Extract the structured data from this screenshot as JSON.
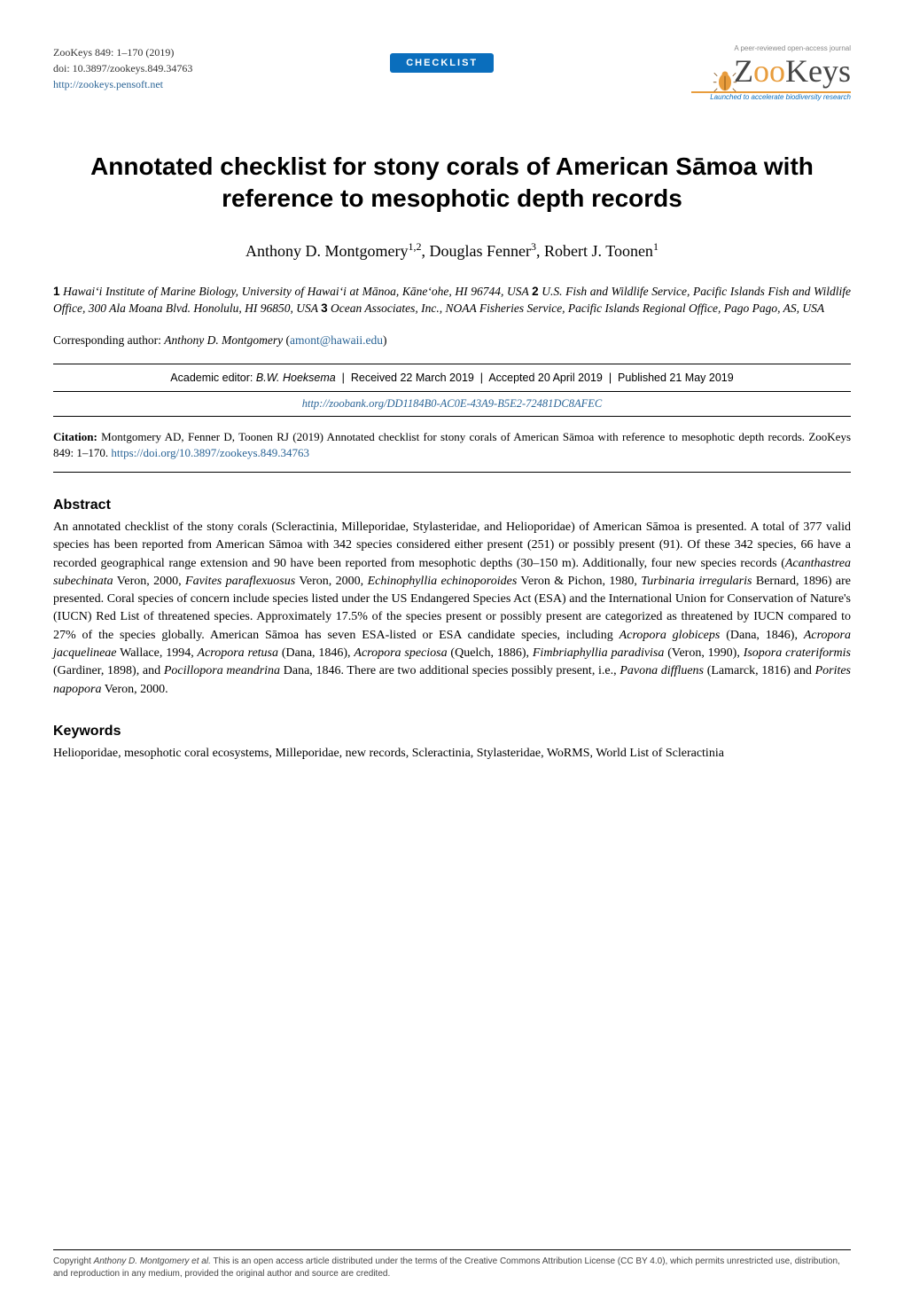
{
  "header": {
    "journal_line": "ZooKeys 849: 1–170 (2019)",
    "doi_line": "doi: 10.3897/zookeys.849.34763",
    "site_url": "http://zookeys.pensoft.net",
    "badge_label": "CHECKLIST",
    "logo": {
      "tagline_top": "A peer-reviewed open-access journal",
      "name_prefix": "Z",
      "name_oo": "oo",
      "name_suffix": "Keys",
      "tagline_bottom": "Launched to accelerate biodiversity research"
    }
  },
  "title": "Annotated checklist for stony corals of American Sāmoa with reference to mesophotic depth records",
  "authors_html": "Anthony D. Montgomery<sup>1,2</sup>, Douglas Fenner<sup>3</sup>, Robert J. Toonen<sup>1</sup>",
  "affiliations_html": "<b>1</b> Hawaiʻi Institute of Marine Biology, University of Hawaiʻi at Mānoa, Kāneʻohe, HI 96744, USA <b>2</b> U.S. Fish and Wildlife Service, Pacific Islands Fish and Wildlife Office, 300 Ala Moana Blvd. Honolulu, HI 96850, USA <b>3</b> Ocean Associates, Inc., NOAA Fisheries Service, Pacific Islands Regional Office, Pago Pago, AS, USA",
  "corresponding": {
    "label": "Corresponding author:",
    "name": "Anthony D. Montgomery",
    "email": "amont@hawaii.edu"
  },
  "editor_row": {
    "editor_label": "Academic editor:",
    "editor_name": "B.W. Hoeksema",
    "received": "Received 22 March 2019",
    "accepted": "Accepted 20 April 2019",
    "published": "Published 21 May 2019"
  },
  "zoobank_url": "http://zoobank.org/DD1184B0-AC0E-43A9-B5E2-72481DC8AFEC",
  "citation": {
    "label": "Citation:",
    "text": "Montgomery AD, Fenner D, Toonen RJ (2019) Annotated checklist for stony corals of American Sāmoa with reference to mesophotic depth records. ZooKeys 849: 1–170.",
    "doi_url": "https://doi.org/10.3897/zookeys.849.34763"
  },
  "abstract": {
    "heading": "Abstract",
    "body_html": "An annotated checklist of the stony corals (Scleractinia, Milleporidae, Stylasteridae, and Helioporidae) of American Sāmoa is presented. A total of 377 valid species has been reported from American Sāmoa with 342 species considered either present (251) or possibly present (91). Of these 342 species, 66 have a recorded geographical range extension and 90 have been reported from mesophotic depths (30–150 m). Additionally, four new species records (<i>Acanthastrea subechinata</i> Veron, 2000, <i>Favites paraflexuosus</i> Veron, 2000, <i>Echinophyllia echinoporoides</i> Veron &amp; Pichon, 1980, <i>Turbinaria irregularis</i> Bernard, 1896) are presented. Coral species of concern include species listed under the US Endangered Species Act (ESA) and the International Union for Conservation of Nature's (IUCN) Red List of threatened species. Approximately 17.5% of the species present or possibly present are categorized as threatened by IUCN compared to 27% of the species globally. American Sāmoa has seven ESA-listed or ESA candidate species, including <i>Acropora globiceps</i> (Dana, 1846), <i>Acropora jacquelineae</i> Wallace, 1994, <i>Acropora retusa</i> (Dana, 1846), <i>Acropora speciosa</i> (Quelch, 1886), <i>Fimbriaphyllia paradivisa</i> (Veron, 1990), <i>Isopora crateriformis</i> (Gardiner, 1898), and <i>Pocillopora meandrina</i> Dana, 1846. There are two additional species possibly present, i.e., <i>Pavona diffluens</i> (Lamarck, 1816) and <i>Porites napopora</i> Veron, 2000."
  },
  "keywords": {
    "heading": "Keywords",
    "body": "Helioporidae, mesophotic coral ecosystems, Milleporidae, new records, Scleractinia, Stylasteridae, WoRMS, World List of Scleractinia"
  },
  "footer": {
    "text_html": "Copyright <i>Anthony D. Montgomery et al.</i> This is an open access article distributed under the terms of the Creative Commons Attribution License (CC BY 4.0), which permits unrestricted use, distribution, and reproduction in any medium, provided the original author and source are credited."
  },
  "colors": {
    "badge_bg": "#0a6ebd",
    "badge_text": "#ffffff",
    "link": "#2a6496",
    "accent": "#e89c3c",
    "rule": "#000000"
  }
}
